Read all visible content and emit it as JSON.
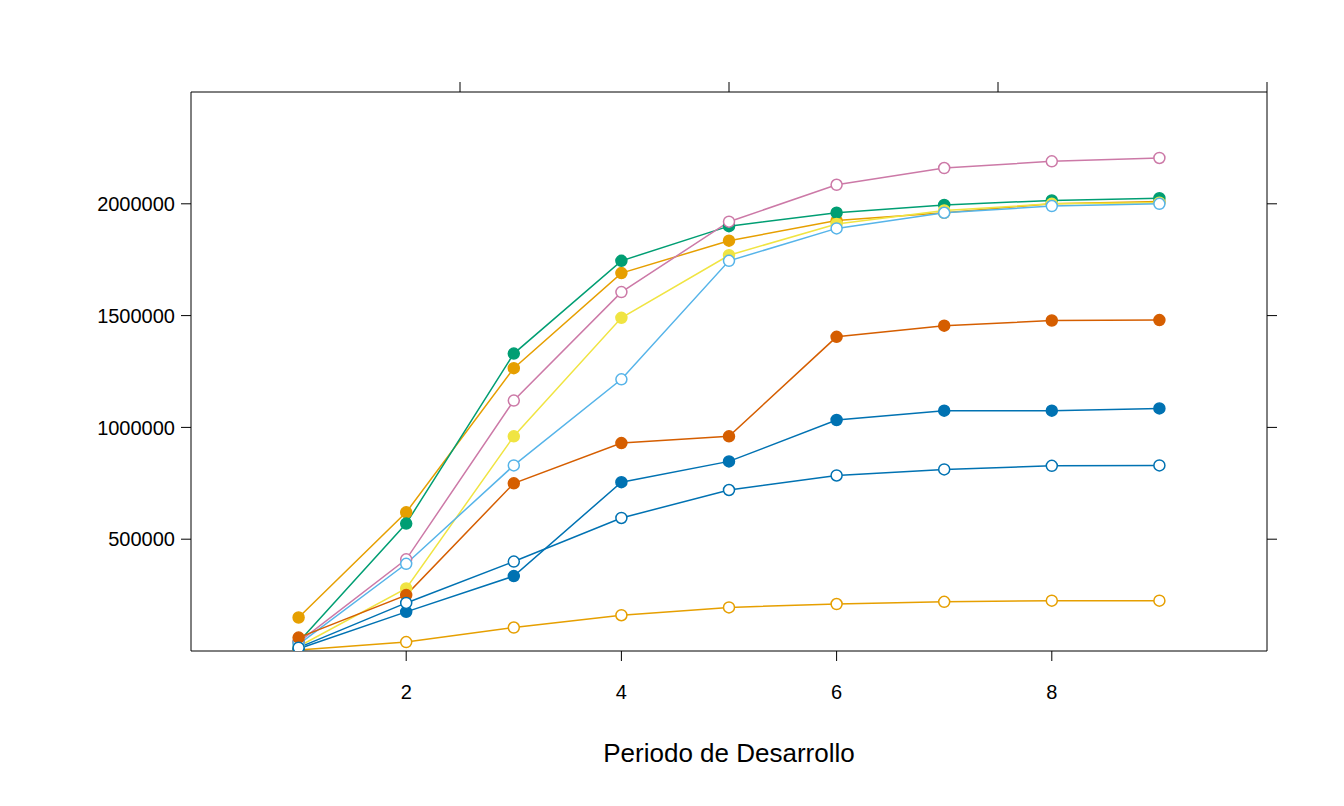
{
  "chart_data": {
    "type": "line",
    "x_label": "Periodo de Desarrollo",
    "x": [
      1,
      2,
      3,
      4,
      5,
      6,
      7,
      8,
      9
    ],
    "xlim": [
      0,
      10
    ],
    "xticks": [
      2,
      4,
      6,
      8
    ],
    "ylim": [
      0,
      2500000
    ],
    "yticks": [
      500000,
      1000000,
      1500000,
      2000000
    ],
    "grid": false,
    "series": [
      {
        "color": "#E69F00",
        "marker": "open",
        "values": [
          5000,
          40000,
          105000,
          160000,
          195000,
          210000,
          220000,
          225000,
          225000
        ]
      },
      {
        "color": "#E69F00",
        "marker": "filled",
        "values": [
          150000,
          620000,
          1265000,
          1690000,
          1835000,
          1925000,
          1960000,
          2000000,
          2010000
        ]
      },
      {
        "color": "#009E73",
        "marker": "filled",
        "values": [
          40000,
          570000,
          1330000,
          1745000,
          1900000,
          1960000,
          1995000,
          2015000,
          2025000
        ]
      },
      {
        "color": "#CC79A7",
        "marker": "open",
        "values": [
          40000,
          410000,
          1120000,
          1605000,
          1920000,
          2085000,
          2160000,
          2190000,
          2205000
        ]
      },
      {
        "color": "#F0E442",
        "marker": "filled",
        "values": [
          20000,
          280000,
          960000,
          1490000,
          1770000,
          1910000,
          1970000,
          2000000,
          2005000
        ]
      },
      {
        "color": "#56B4E9",
        "marker": "open",
        "values": [
          30000,
          390000,
          830000,
          1215000,
          1745000,
          1890000,
          1960000,
          1990000,
          2000000
        ]
      },
      {
        "color": "#D55E00",
        "marker": "filled",
        "values": [
          60000,
          250000,
          750000,
          930000,
          960000,
          1405000,
          1455000,
          1478000,
          1480000
        ]
      },
      {
        "color": "#0072B2",
        "marker": "filled",
        "values": [
          10000,
          175000,
          335000,
          755000,
          848000,
          1033000,
          1075000,
          1075000,
          1085000
        ]
      },
      {
        "color": "#0072B2",
        "marker": "open",
        "values": [
          15000,
          215000,
          400000,
          595000,
          720000,
          785000,
          812000,
          828000,
          830000
        ]
      }
    ]
  }
}
